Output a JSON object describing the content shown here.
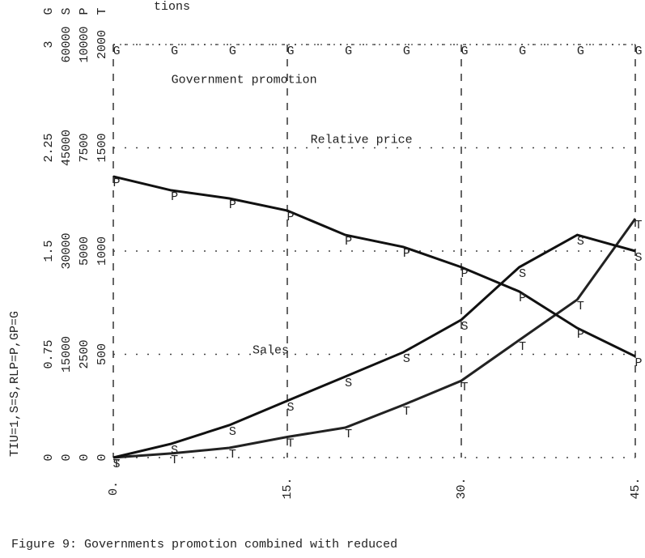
{
  "chart_data": {
    "type": "line",
    "title": "tions",
    "ylabel": "TIU=1,S=S,RLP=P,GP=G",
    "caption": "Figure 9:  Governments promotion combined with reduced",
    "x": [
      0,
      5,
      10,
      15,
      20,
      25,
      30,
      35,
      40,
      45
    ],
    "xlim": [
      0,
      45
    ],
    "xticks": [
      {
        "value": 0,
        "label": "0."
      },
      {
        "value": 15,
        "label": "15."
      },
      {
        "value": 30,
        "label": "30."
      },
      {
        "value": 45,
        "label": "45."
      }
    ],
    "ylim": [
      0,
      2000
    ],
    "yticks": [
      0,
      500,
      1000,
      1500,
      2000
    ],
    "y_scales": [
      [
        "0",
        "0.75",
        "1.5",
        "2.25",
        "3"
      ],
      [
        "0",
        "15000",
        "30000",
        "45000",
        "60000"
      ],
      [
        "0",
        "2500",
        "5000",
        "7500",
        "10000"
      ]
    ],
    "scale_letters": [
      "T",
      "P",
      "S",
      "G"
    ],
    "grid": true,
    "series": [
      {
        "marker": "T",
        "color": "#222222",
        "values": [
          0,
          20,
          47,
          100,
          145,
          255,
          372,
          569,
          765,
          1157
        ]
      },
      {
        "marker": "S",
        "color": "#111111",
        "values": [
          0,
          67,
          157,
          275,
          392,
          510,
          667,
          922,
          1078,
          1000
        ]
      },
      {
        "marker": "P",
        "color": "#111111",
        "values": [
          1361,
          1294,
          1255,
          1196,
          1078,
          1020,
          922,
          804,
          627,
          490
        ]
      },
      {
        "marker": "G",
        "color": "#111111",
        "values": [
          2000,
          2000,
          2000,
          2000,
          2000,
          2000,
          2000,
          2000,
          2000,
          2000
        ]
      }
    ],
    "annotations": [
      {
        "text": "Government promotion",
        "x": 5,
        "y": 1830
      },
      {
        "text": "Relative price",
        "x": 17,
        "y": 1540
      },
      {
        "text": "Sales",
        "x": 12,
        "y": 520
      }
    ]
  }
}
